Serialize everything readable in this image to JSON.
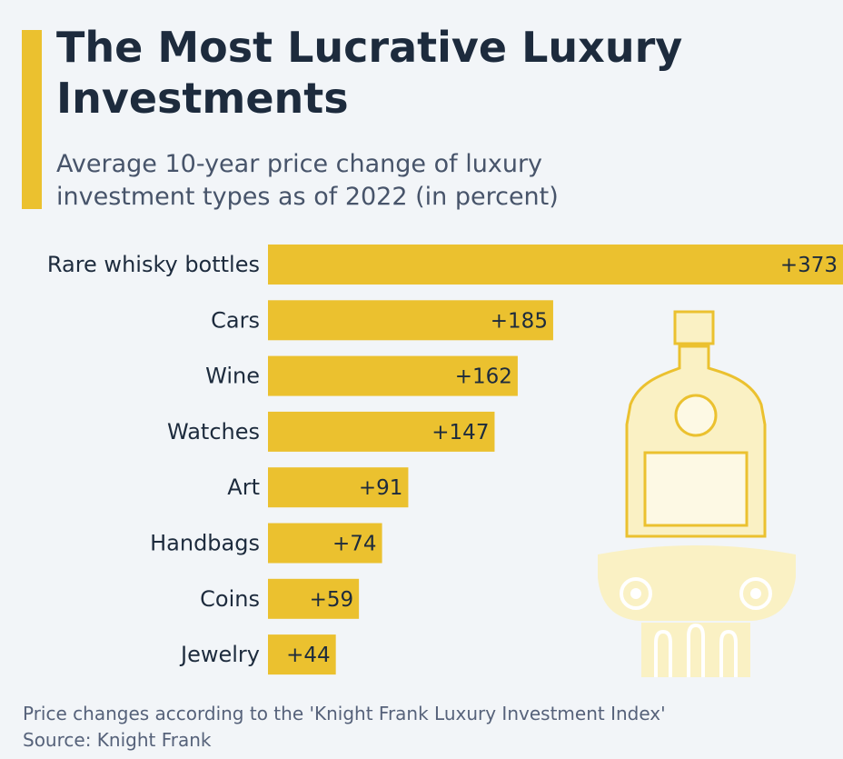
{
  "header": {
    "title": "The Most Lucrative Luxury Investments",
    "subtitle": "Average 10-year price change of luxury investment types as of 2022 (in percent)"
  },
  "chart_data": {
    "type": "bar",
    "orientation": "horizontal",
    "title": "The Most Lucrative Luxury Investments",
    "subtitle": "Average 10-year price change of luxury investment types as of 2022 (in percent)",
    "categories": [
      "Rare whisky bottles",
      "Cars",
      "Wine",
      "Watches",
      "Art",
      "Handbags",
      "Coins",
      "Jewelry"
    ],
    "values": [
      373,
      185,
      162,
      147,
      91,
      74,
      59,
      44
    ],
    "labels": [
      "+373",
      "+185",
      "+162",
      "+147",
      "+91",
      "+74",
      "+59",
      "+44"
    ],
    "xlim": [
      0,
      373
    ],
    "grid": false,
    "legend": "none",
    "bar_color": "#ebc12f"
  },
  "footer": {
    "note": "Price changes according to the 'Knight Frank Luxury Investment Index'",
    "source": "Source: Knight Frank"
  },
  "colors": {
    "accent": "#ebc12f",
    "title": "#1d2b3d",
    "background": "#f2f5f8",
    "illustration": "#faf1c4"
  },
  "icons": [
    "whisky-bottle-icon",
    "ionic-column-icon"
  ]
}
